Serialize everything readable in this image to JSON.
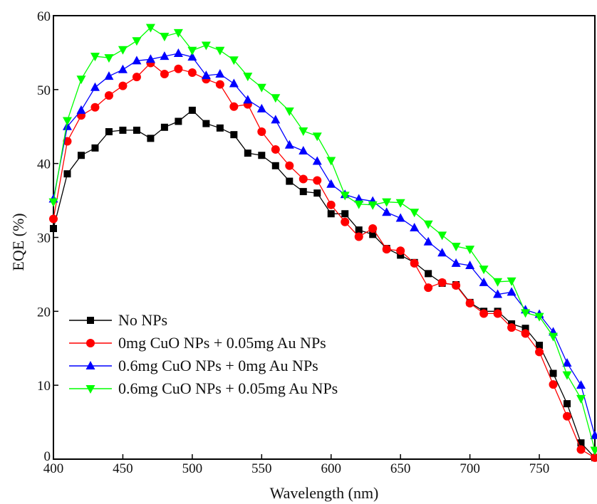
{
  "chart_data": {
    "type": "line",
    "xlabel": "Wavelength (nm)",
    "ylabel": "EQE (%)",
    "xlim": [
      400,
      790
    ],
    "ylim": [
      0,
      60
    ],
    "x_ticks": [
      400,
      450,
      500,
      550,
      600,
      650,
      700,
      750
    ],
    "y_ticks": [
      0,
      10,
      20,
      30,
      40,
      50,
      60
    ],
    "grid": false,
    "legend_position": "lower-left",
    "x": [
      400,
      410,
      420,
      430,
      440,
      450,
      460,
      470,
      480,
      490,
      500,
      510,
      520,
      530,
      540,
      550,
      560,
      570,
      580,
      590,
      600,
      610,
      620,
      630,
      640,
      650,
      660,
      670,
      680,
      690,
      700,
      710,
      720,
      730,
      740,
      750,
      760,
      770,
      780,
      790
    ],
    "series": [
      {
        "name": "No NPs",
        "color": "#000000",
        "marker": "square",
        "values": [
          31.2,
          38.6,
          41.1,
          42.1,
          44.3,
          44.5,
          44.5,
          43.4,
          44.9,
          45.7,
          47.2,
          45.4,
          44.8,
          43.9,
          41.4,
          41.1,
          39.7,
          37.6,
          36.2,
          36.0,
          33.2,
          33.2,
          31.0,
          30.4,
          28.5,
          27.6,
          26.6,
          25.1,
          23.8,
          23.6,
          21.2,
          20.0,
          20.0,
          18.3,
          17.7,
          15.4,
          11.6,
          7.5,
          2.2,
          0.2
        ]
      },
      {
        "name": "0mg CuO NPs + 0.05mg Au NPs",
        "color": "#ff0000",
        "marker": "circle",
        "values": [
          32.5,
          43.0,
          46.5,
          47.6,
          49.2,
          50.5,
          51.7,
          53.6,
          52.1,
          52.8,
          52.3,
          51.4,
          50.7,
          47.7,
          48.0,
          44.3,
          41.9,
          39.7,
          37.9,
          37.7,
          34.4,
          32.1,
          30.1,
          31.2,
          28.4,
          28.2,
          26.5,
          23.2,
          23.9,
          23.5,
          21.1,
          19.7,
          19.7,
          17.8,
          17.0,
          14.5,
          10.1,
          5.8,
          1.3,
          0.2
        ]
      },
      {
        "name": "0.6mg CuO NPs + 0mg Au NPs",
        "color": "#0000ff",
        "marker": "triangle-up",
        "values": [
          35.2,
          45.0,
          47.2,
          50.3,
          51.8,
          52.7,
          53.9,
          54.1,
          54.5,
          54.9,
          54.4,
          51.9,
          52.1,
          50.8,
          48.6,
          47.4,
          45.9,
          42.5,
          41.7,
          40.3,
          37.2,
          35.8,
          35.2,
          34.9,
          33.4,
          32.6,
          31.3,
          29.4,
          27.9,
          26.5,
          26.2,
          23.9,
          22.3,
          22.6,
          20.2,
          19.6,
          17.2,
          13.0,
          10.0,
          3.2
        ]
      },
      {
        "name": "0.6mg CuO NPs + 0.05mg Au NPs",
        "color": "#00ff00",
        "marker": "triangle-down",
        "values": [
          34.8,
          45.8,
          51.4,
          54.5,
          54.3,
          55.4,
          56.6,
          58.4,
          57.2,
          57.7,
          55.3,
          56.0,
          55.3,
          54.0,
          51.8,
          50.3,
          48.9,
          47.1,
          44.4,
          43.7,
          40.4,
          35.7,
          34.5,
          34.4,
          34.8,
          34.7,
          33.4,
          31.8,
          30.3,
          28.8,
          28.4,
          25.7,
          24.0,
          24.1,
          19.8,
          19.3,
          16.6,
          11.4,
          8.2,
          1.2
        ]
      }
    ]
  }
}
